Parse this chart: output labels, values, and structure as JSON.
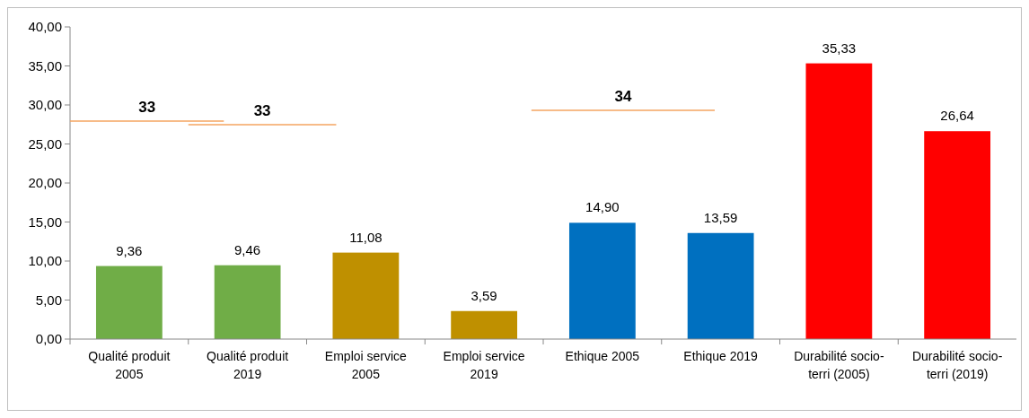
{
  "chart_data": {
    "type": "bar",
    "categories": [
      "Qualité produit 2005",
      "Qualité produit 2019",
      "Emploi service 2005",
      "Emploi service 2019",
      "Ethique 2005",
      "Ethique 2019",
      "Durabilité socio-terri (2005)",
      "Durabilité socio-terri (2019)"
    ],
    "values": [
      9.36,
      9.46,
      11.08,
      3.59,
      14.9,
      13.59,
      35.33,
      26.64
    ],
    "colors": [
      "#70ad47",
      "#70ad47",
      "#bf9000",
      "#bf9000",
      "#0070c0",
      "#0070c0",
      "#ff0000",
      "#ff0000"
    ],
    "value_labels": [
      "9,36",
      "9,46",
      "11,08",
      "3,59",
      "14,90",
      "13,59",
      "35,33",
      "26,64"
    ],
    "ylim": [
      0,
      40
    ],
    "yticks": [
      {
        "value": 0,
        "label": "0,00"
      },
      {
        "value": 5,
        "label": "5,00"
      },
      {
        "value": 10,
        "label": "10,00"
      },
      {
        "value": 15,
        "label": "15,00"
      },
      {
        "value": 20,
        "label": "20,00"
      },
      {
        "value": 25,
        "label": "25,00"
      },
      {
        "value": 30,
        "label": "30,00"
      },
      {
        "value": 35,
        "label": "35,00"
      },
      {
        "value": 40,
        "label": "40,00"
      }
    ],
    "annotations": [
      "33",
      "33",
      "34"
    ],
    "grid": false
  }
}
